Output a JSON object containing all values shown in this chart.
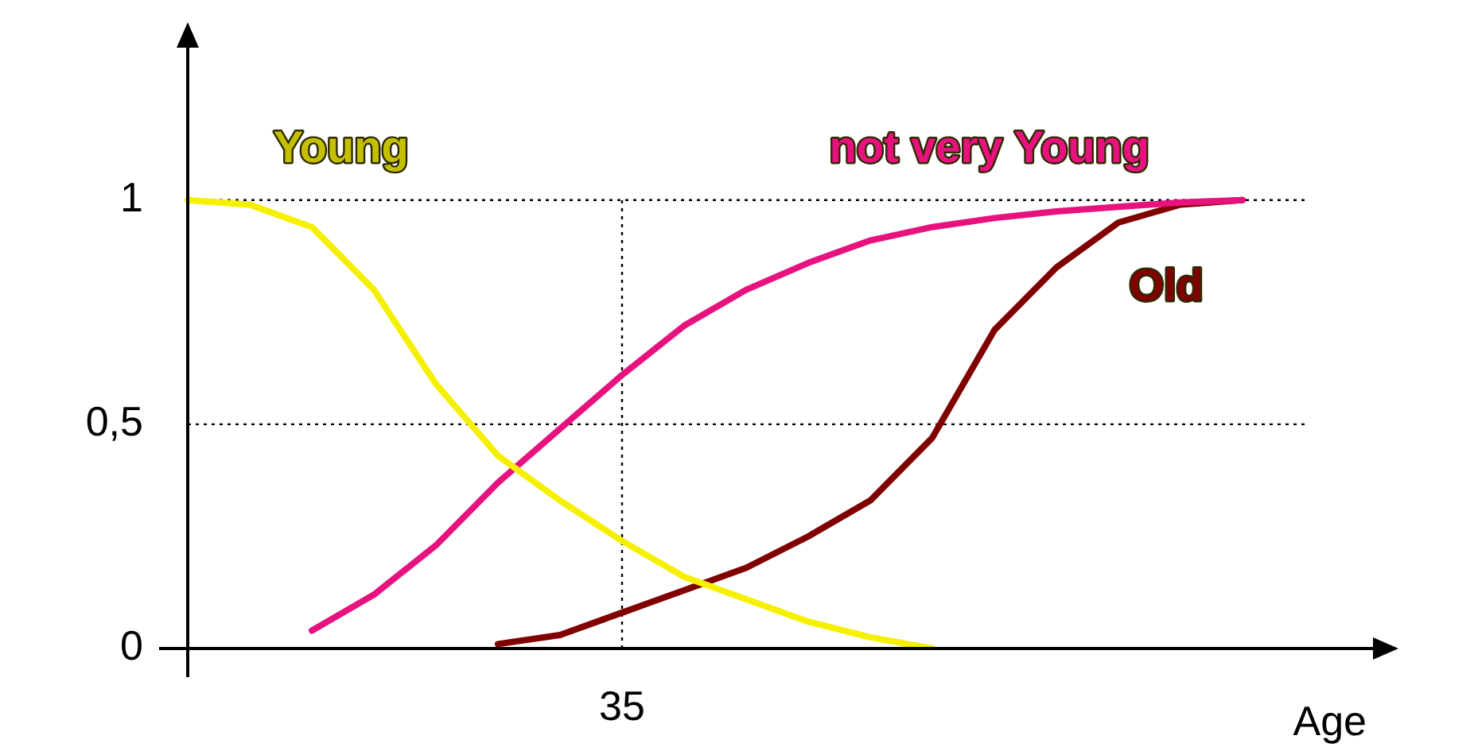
{
  "chart_data": {
    "type": "line",
    "xlabel": "Age",
    "categories": [
      null,
      null,
      null,
      null,
      null,
      null,
      null,
      "35",
      null,
      null,
      null,
      null,
      null,
      null,
      null,
      null,
      null,
      null,
      null,
      null
    ],
    "ylim": [
      0,
      1.34
    ],
    "yticks": [
      0,
      {
        "value": 0.5,
        "label": "0,5"
      },
      1
    ],
    "grid": false,
    "legend": false,
    "marker": "none",
    "line_style": "solid",
    "series": [
      {
        "name": "Young",
        "color": "#f5f000",
        "values": [
          1,
          0.99,
          0.94,
          0.8,
          0.59,
          0.43,
          0.33,
          0.24,
          0.16,
          0.11,
          0.06,
          0.025,
          0,
          null,
          null,
          null,
          null,
          null,
          null,
          null
        ]
      },
      {
        "name": "not very Young",
        "color": "#e8127f",
        "values": [
          null,
          null,
          0.04,
          0.12,
          0.23,
          0.37,
          0.49,
          0.61,
          0.72,
          0.8,
          0.86,
          0.91,
          0.94,
          0.96,
          0.975,
          0.985,
          0.995,
          1,
          null,
          null
        ]
      },
      {
        "name": "Old",
        "color": "#800000",
        "values": [
          null,
          null,
          null,
          null,
          null,
          0.01,
          0.03,
          0.08,
          0.13,
          0.18,
          0.25,
          0.33,
          0.47,
          0.71,
          0.85,
          0.95,
          0.99,
          1,
          null,
          null
        ]
      }
    ],
    "ref_lines": [
      {
        "axis": "y",
        "value": 1,
        "color": "#000000",
        "line_style": "dotted"
      },
      {
        "axis": "y",
        "value": 0.5,
        "color": "#000000",
        "line_style": "dotted"
      },
      {
        "axis": "x",
        "value": "35",
        "color": "#000000",
        "line_style": "dotted"
      }
    ]
  }
}
